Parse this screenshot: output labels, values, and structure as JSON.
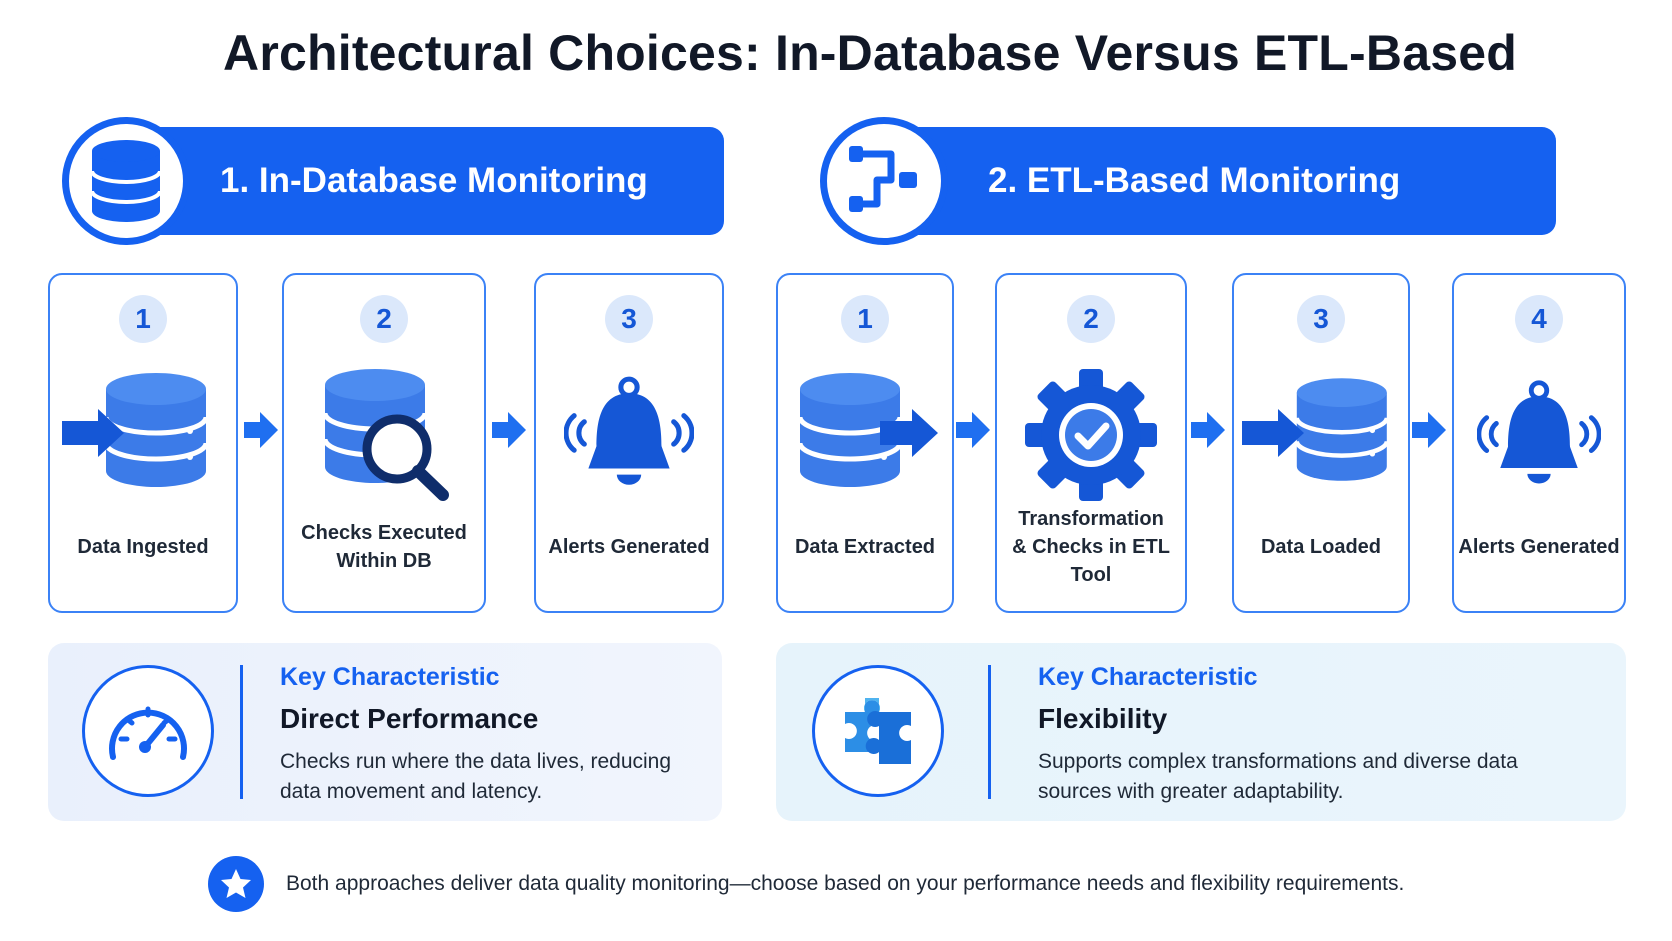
{
  "title": "Architectural Choices: In-Database Versus ETL-Based",
  "sections": [
    {
      "header": "1. In-Database Monitoring",
      "icon": "database-icon",
      "steps": [
        {
          "num": "1",
          "label": "Data Ingested",
          "icon": "database-ingest-icon"
        },
        {
          "num": "2",
          "label": "Checks Executed Within DB",
          "icon": "database-search-icon"
        },
        {
          "num": "3",
          "label": "Alerts Generated",
          "icon": "bell-icon"
        }
      ],
      "key": {
        "label": "Key Characteristic",
        "title": "Direct Performance",
        "desc": "Checks run where the data lives, reducing data movement and latency.",
        "icon": "speedometer-icon"
      }
    },
    {
      "header": "2. ETL-Based Monitoring",
      "icon": "pipeline-icon",
      "steps": [
        {
          "num": "1",
          "label": "Data Extracted",
          "icon": "database-extract-icon"
        },
        {
          "num": "2",
          "label": "Transformation & Checks in ETL Tool",
          "icon": "gear-check-icon"
        },
        {
          "num": "3",
          "label": "Data Loaded",
          "icon": "database-load-icon"
        },
        {
          "num": "4",
          "label": "Alerts Generated",
          "icon": "bell-icon"
        }
      ],
      "key": {
        "label": "Key Characteristic",
        "title": "Flexibility",
        "desc": "Supports complex transformations and diverse data sources with greater adaptability.",
        "icon": "puzzle-icon"
      }
    }
  ],
  "footer": "Both approaches deliver data quality monitoring—choose based on your performance needs and flexibility requirements.",
  "colors": {
    "primary": "#1561f0",
    "light_panel": "#eef3fd",
    "light_panel_2": "#e8f4fd"
  }
}
